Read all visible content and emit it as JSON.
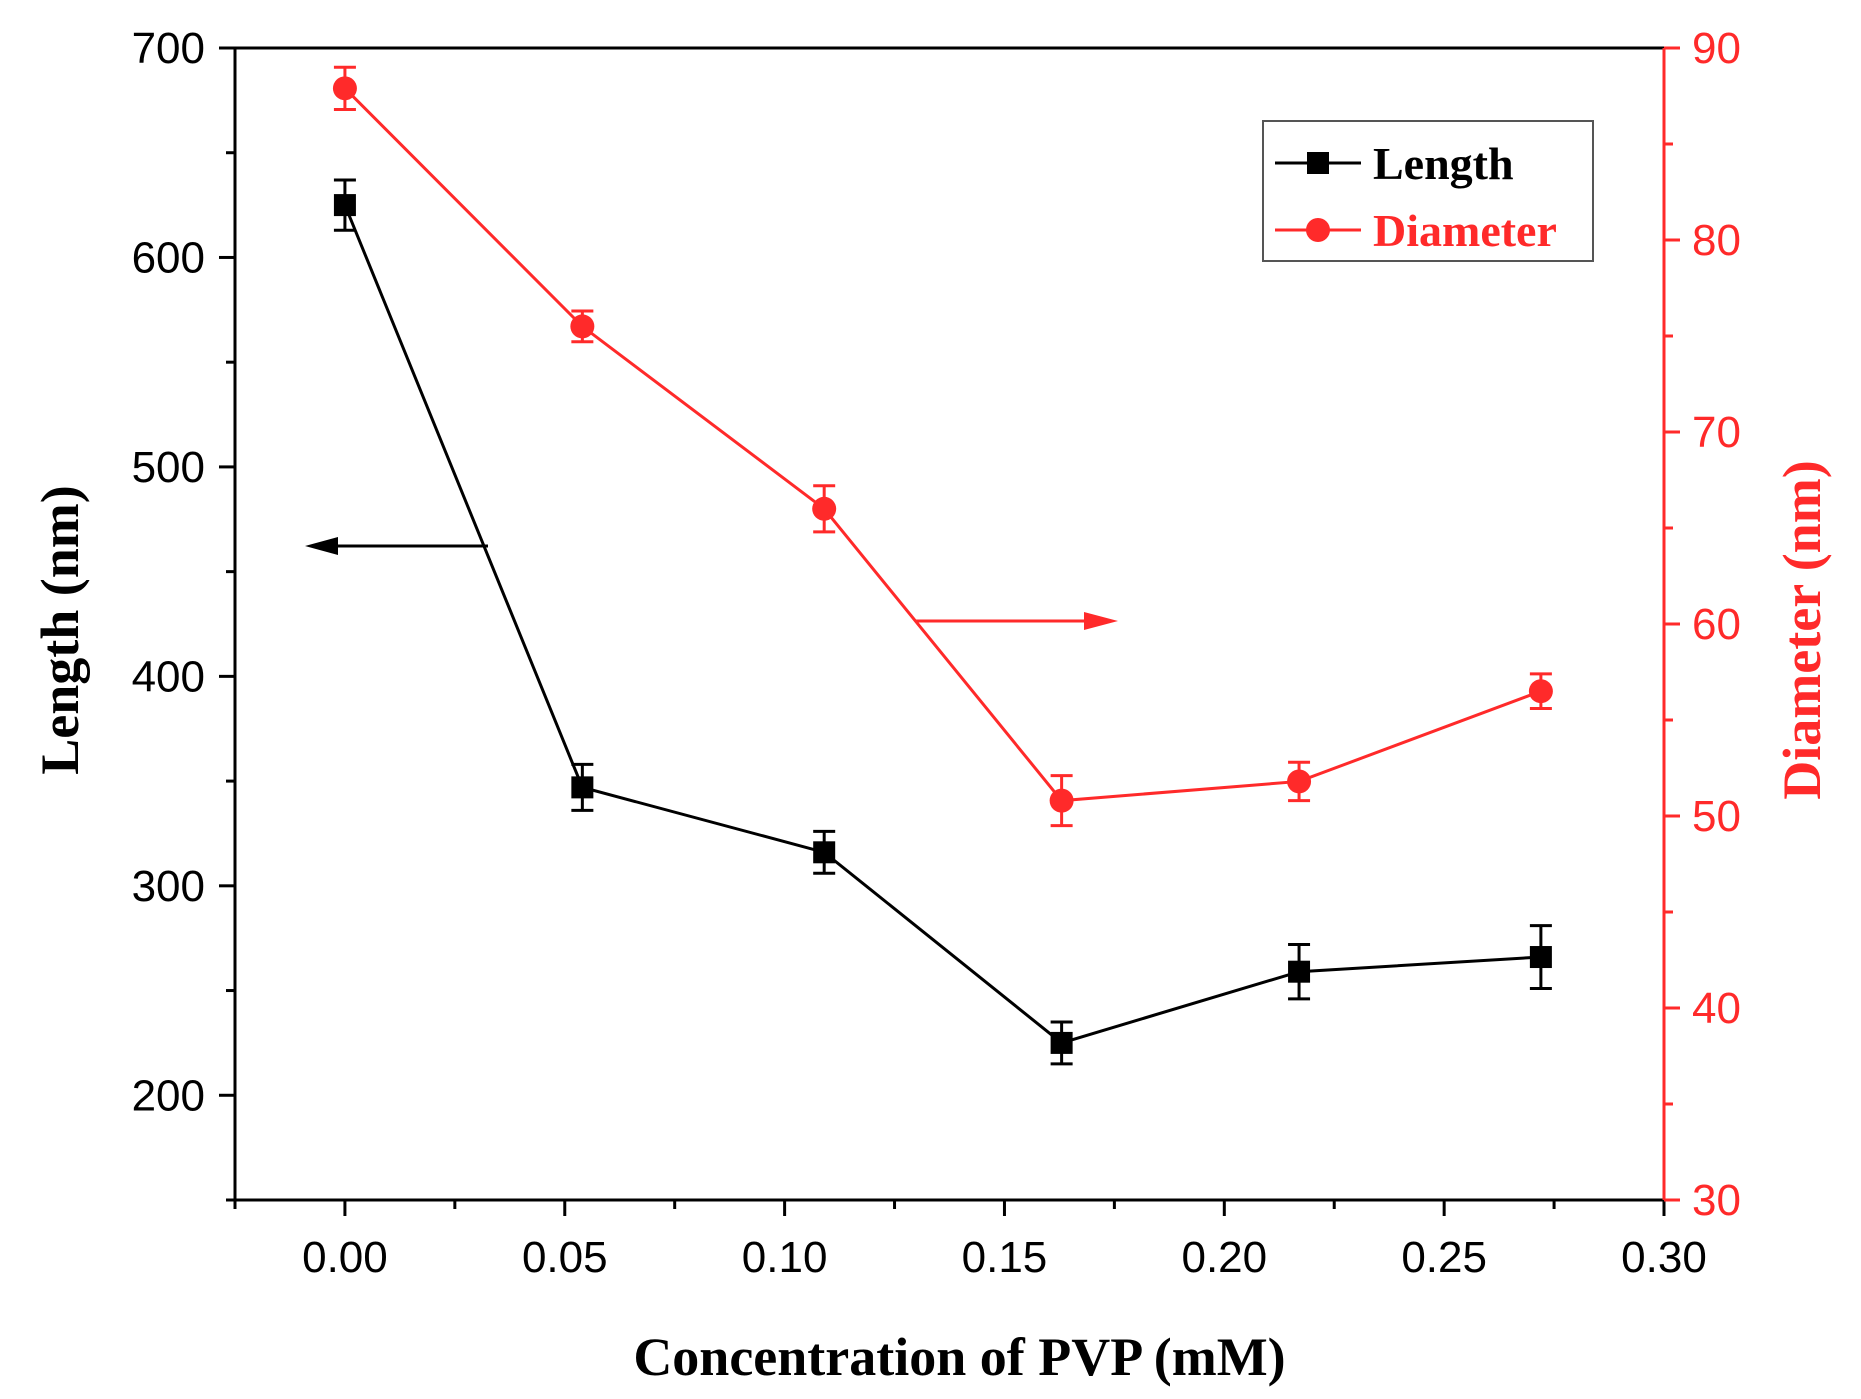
{
  "chart_data": {
    "type": "line",
    "title": "",
    "xlabel": "Concentration of PVP (mM)",
    "xlim": [
      -0.025,
      0.3
    ],
    "x_ticks": [
      0.0,
      0.05,
      0.1,
      0.15,
      0.2,
      0.25,
      0.3
    ],
    "x_tick_labels": [
      "0.00",
      "0.05",
      "0.10",
      "0.15",
      "0.20",
      "0.25",
      "0.30"
    ],
    "y_left": {
      "label": "Length (nm)",
      "ylim": [
        150,
        700
      ],
      "ticks": [
        200,
        300,
        400,
        500,
        600,
        700
      ],
      "tick_labels": [
        "200",
        "300",
        "400",
        "500",
        "600",
        "700"
      ]
    },
    "y_right": {
      "label": "Diameter (nm)",
      "ylim": [
        30,
        90
      ],
      "ticks": [
        30,
        40,
        50,
        60,
        70,
        80,
        90
      ],
      "tick_labels": [
        "30",
        "40",
        "50",
        "60",
        "70",
        "80",
        "90"
      ]
    },
    "series": [
      {
        "name": "Length",
        "axis": "left",
        "color": "#000000",
        "marker": "square",
        "x": [
          0.0,
          0.054,
          0.109,
          0.163,
          0.217,
          0.272
        ],
        "values": [
          625,
          347,
          316,
          225,
          259,
          266
        ],
        "errors": [
          12,
          11,
          10,
          10,
          13,
          15
        ]
      },
      {
        "name": "Diameter",
        "axis": "right",
        "color": "#ff2a2a",
        "marker": "circle",
        "x": [
          0.0,
          0.054,
          0.109,
          0.163,
          0.217,
          0.272
        ],
        "values": [
          87.9,
          75.5,
          66.0,
          50.8,
          51.8,
          56.5
        ],
        "errors": [
          1.1,
          0.8,
          1.2,
          1.3,
          1.0,
          0.9
        ]
      }
    ],
    "legend": {
      "position": "top-right",
      "items": [
        "Length",
        "Diameter"
      ]
    },
    "annotations": [
      {
        "type": "arrow",
        "direction": "left",
        "points_to": "Length axis",
        "color": "#000000"
      },
      {
        "type": "arrow",
        "direction": "right",
        "points_to": "Diameter axis",
        "color": "#ff2a2a"
      }
    ]
  }
}
